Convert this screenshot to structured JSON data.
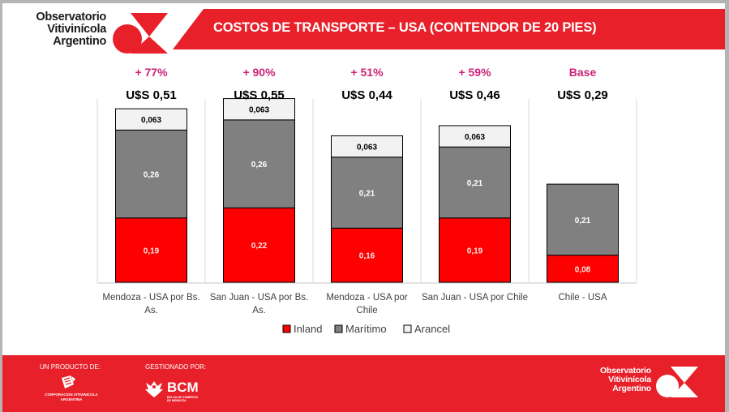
{
  "header": {
    "logo_lines": [
      "Observatorio",
      "Vitivinícola",
      "Argentino"
    ],
    "title": "COSTOS DE TRANSPORTE – USA (CONTENDOR DE 20 PIES)"
  },
  "colors": {
    "brand_red": "#e8202a",
    "inland": "#ff0000",
    "maritimo": "#808080",
    "arancel": "#f2f2f2",
    "pct_label": "#cc2277"
  },
  "chart_data": {
    "type": "bar",
    "stacked": true,
    "title": "COSTOS DE TRANSPORTE – USA (CONTENDOR DE 20 PIES)",
    "xlabel": "",
    "ylabel": "",
    "categories": [
      [
        "Mendoza - USA por Bs.",
        "As."
      ],
      [
        "San Juan - USA por Bs.",
        "As."
      ],
      [
        "Mendoza - USA por",
        "Chile"
      ],
      [
        "San Juan - USA por Chile"
      ],
      [
        "Chile - USA"
      ]
    ],
    "series": [
      {
        "name": "Inland",
        "values": [
          0.19,
          0.22,
          0.16,
          0.19,
          0.08
        ],
        "labels": [
          "0,19",
          "0,22",
          "0,16",
          "0,19",
          "0,08"
        ]
      },
      {
        "name": "Marítimo",
        "values": [
          0.26,
          0.26,
          0.21,
          0.21,
          0.21
        ],
        "labels": [
          "0,26",
          "0,26",
          "0,21",
          "0,21",
          "0,21"
        ]
      },
      {
        "name": "Arancel",
        "values": [
          0.063,
          0.063,
          0.063,
          0.063,
          0
        ],
        "labels": [
          "0,063",
          "0,063",
          "0,063",
          "0,063",
          ""
        ]
      }
    ],
    "totals": [
      "U$S 0,51",
      "U$S 0,55",
      "U$S 0,44",
      "U$S 0,46",
      "U$S 0,29"
    ],
    "pct_vs_base": [
      "+ 77%",
      "+ 90%",
      "+ 51%",
      "+ 59%",
      "Base"
    ],
    "ylim": [
      0,
      0.6
    ],
    "grid": false,
    "legend": {
      "position": "bottom",
      "entries": [
        "Inland",
        "Marítimo",
        "Arancel"
      ]
    }
  },
  "footer": {
    "product_label": "UN PRODUCTO DE:",
    "product_org": [
      "CORPORACION VITIVINICOLA",
      "ARGENTINA"
    ],
    "managed_label": "GESTIONADO POR:",
    "managed_org": "BCM",
    "managed_org_sub": [
      "BOLSA DE COMERCIO",
      "DE MENDOZA"
    ],
    "logo_lines": [
      "Observatorio",
      "Vitivinícola",
      "Argentino"
    ]
  }
}
